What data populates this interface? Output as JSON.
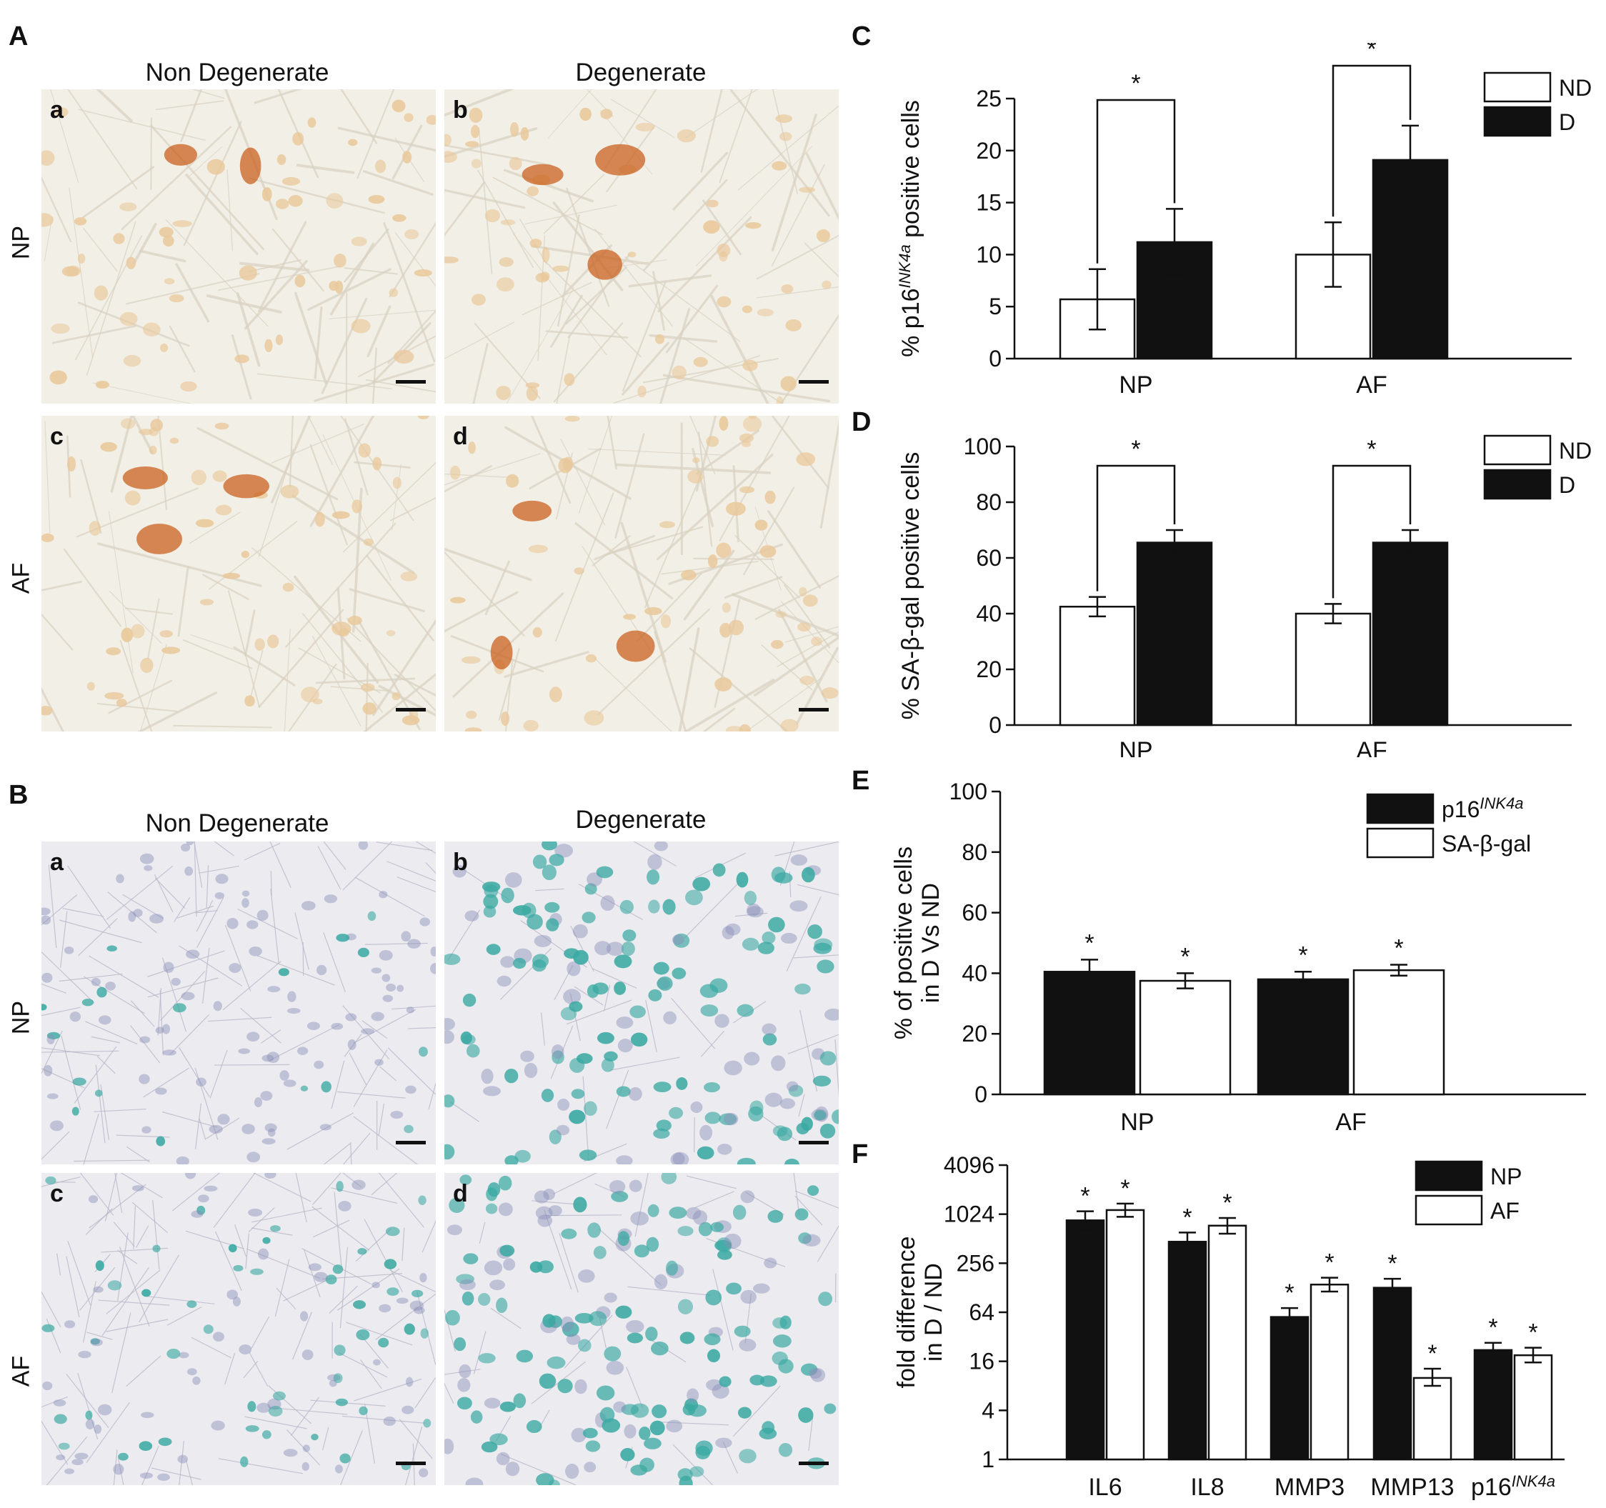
{
  "panels": {
    "A": {
      "letter": "A",
      "columns": [
        "Non Degenerate",
        "Degenerate"
      ],
      "rows": [
        "NP",
        "AF"
      ],
      "sub": [
        "a",
        "b",
        "c",
        "d"
      ]
    },
    "B": {
      "letter": "B",
      "columns": [
        "Non Degenerate",
        "Degenerate"
      ],
      "rows": [
        "NP",
        "AF"
      ],
      "sub": [
        "a",
        "b",
        "c",
        "d"
      ]
    }
  },
  "colors": {
    "stain_a_bg": "#f2efe6",
    "stain_a_cell": "#e9c89a",
    "stain_a_dark": "#c9621f",
    "stain_b_bg": "#ecebf0",
    "stain_b_cell": "#8a8fb8",
    "stain_b_blue": "#3aa9a2",
    "bar_dark": "#111111",
    "bar_light": "#ffffff"
  },
  "chart_data": [
    {
      "id": "C",
      "letter": "C",
      "type": "bar",
      "categories": [
        "NP",
        "AF"
      ],
      "series": [
        {
          "name": "ND",
          "values": [
            5.7,
            10.0
          ],
          "errors": [
            2.9,
            3.1
          ]
        },
        {
          "name": "D",
          "values": [
            11.2,
            19.1
          ],
          "errors": [
            3.2,
            3.3
          ]
        }
      ],
      "ylabel": "% p16",
      "ylabel_sup": "INK4a",
      "ylabel_rest": " positive cells",
      "ylim": [
        0,
        25
      ],
      "yticks": [
        0,
        5,
        10,
        15,
        20,
        25
      ],
      "significance": [
        "*",
        "*"
      ],
      "legend": "top-right"
    },
    {
      "id": "D",
      "letter": "D",
      "type": "bar",
      "categories": [
        "NP",
        "AF"
      ],
      "series": [
        {
          "name": "ND",
          "values": [
            42.5,
            40.0
          ],
          "errors": [
            3.5,
            3.5
          ]
        },
        {
          "name": "D",
          "values": [
            65.5,
            65.5
          ],
          "errors": [
            4.5,
            4.5
          ]
        }
      ],
      "ylabel": "% SA-β-gal positive cells",
      "ylim": [
        0,
        100
      ],
      "yticks": [
        0,
        20,
        40,
        60,
        80,
        100
      ],
      "significance": [
        "*",
        "*"
      ],
      "legend": "top-right"
    },
    {
      "id": "E",
      "letter": "E",
      "type": "bar",
      "categories": [
        "NP",
        "AF"
      ],
      "series": [
        {
          "name": "p16",
          "name_sup": "INK4a",
          "values": [
            40.5,
            38.0
          ],
          "errors": [
            4.0,
            2.5
          ]
        },
        {
          "name": "SA-β-gal",
          "values": [
            37.5,
            41.0
          ],
          "errors": [
            2.5,
            1.8
          ]
        }
      ],
      "ylabel_line1": "% of positive cells",
      "ylabel_line2": "in D Vs ND",
      "ylim": [
        0,
        100
      ],
      "yticks": [
        0,
        20,
        40,
        60,
        80,
        100
      ],
      "significance_markers": "*",
      "legend": "top-right"
    },
    {
      "id": "F",
      "letter": "F",
      "type": "bar",
      "yscale": "log2",
      "categories": [
        "IL6",
        "IL8",
        "MMP3",
        "MMP13",
        "p16"
      ],
      "category_sup": [
        "",
        "",
        "",
        "",
        "INK4a"
      ],
      "series": [
        {
          "name": "NP",
          "values": [
            860,
            470,
            56,
            128,
            22
          ],
          "errors_low": [
            660,
            360,
            44,
            100,
            18
          ],
          "errors_high": [
            1110,
            610,
            72,
            165,
            27
          ]
        },
        {
          "name": "AF",
          "values": [
            1150,
            740,
            140,
            10,
            19
          ],
          "errors_low": [
            950,
            590,
            115,
            8,
            15.5
          ],
          "errors_high": [
            1380,
            920,
            170,
            13,
            23.5
          ]
        }
      ],
      "ylabel_line1": "fold difference",
      "ylabel_line2": "in D / ND",
      "ylim": [
        1,
        4096
      ],
      "yticks": [
        1,
        4,
        16,
        64,
        256,
        1024,
        4096
      ],
      "significance_markers": "*",
      "legend": "top-right"
    }
  ]
}
